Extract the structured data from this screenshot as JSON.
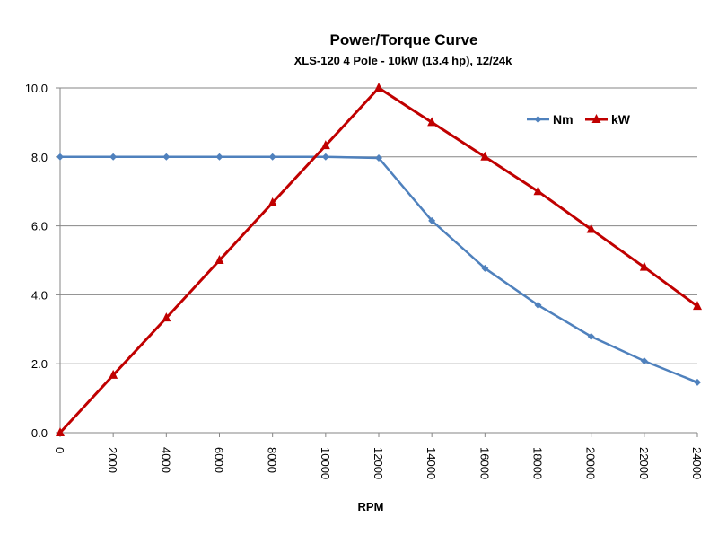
{
  "chart_data": {
    "type": "line",
    "title": "Power/Torque Curve",
    "subtitle": "XLS-120  4 Pole - 10kW (13.4 hp), 12/24k",
    "xlabel": "RPM",
    "ylabel": "",
    "x": [
      0,
      2000,
      4000,
      6000,
      8000,
      10000,
      12000,
      14000,
      16000,
      18000,
      20000,
      22000,
      24000
    ],
    "x_tick_labels": [
      "0",
      "2000",
      "4000",
      "6000",
      "8000",
      "10000",
      "12000",
      "14000",
      "16000",
      "18000",
      "20000",
      "22000",
      "24000"
    ],
    "y_tick_labels": [
      "0.0",
      "2.0",
      "4.0",
      "6.0",
      "8.0",
      "10.0"
    ],
    "xlim": [
      0,
      24000
    ],
    "ylim": [
      0,
      10
    ],
    "grid": "horizontal",
    "legend": "top-right",
    "series": [
      {
        "name": "Nm",
        "color": "#4f81bd",
        "marker": "diamond",
        "values": [
          8.0,
          8.0,
          8.0,
          8.0,
          8.0,
          8.0,
          7.97,
          6.15,
          4.77,
          3.7,
          2.79,
          2.08,
          1.46
        ]
      },
      {
        "name": "kW",
        "color": "#c00000",
        "marker": "triangle",
        "values": [
          0.0,
          1.67,
          3.33,
          5.0,
          6.67,
          8.33,
          10.0,
          9.0,
          8.0,
          7.0,
          5.9,
          4.8,
          3.67
        ]
      }
    ]
  }
}
